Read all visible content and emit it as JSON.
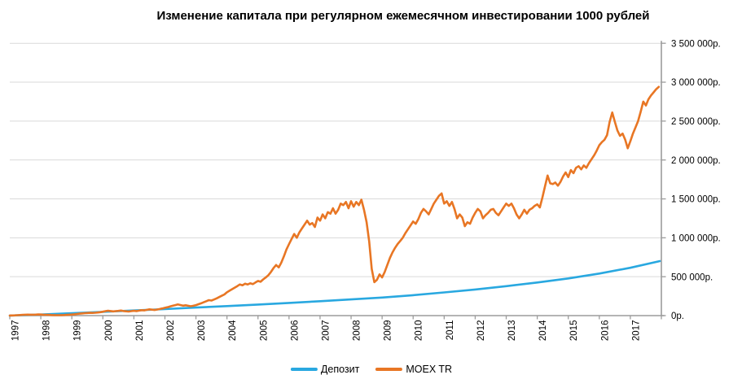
{
  "chart_data": {
    "type": "line",
    "title": "Изменение капитала при регулярном ежемесячном инвестировании 1000 рублей",
    "x_labels": [
      "1997",
      "1998",
      "1999",
      "2000",
      "2001",
      "2002",
      "2003",
      "2004",
      "2005",
      "2006",
      "2007",
      "2008",
      "2009",
      "2010",
      "2011",
      "2012",
      "2013",
      "2014",
      "2015",
      "2016",
      "2017"
    ],
    "y_tick_labels": [
      "0р.",
      "500 000р.",
      "1 000 000р.",
      "1 500 000р.",
      "2 000 000р.",
      "2 500 000р.",
      "3 000 000р.",
      "3 500 000р."
    ],
    "ylim": [
      0,
      3500000
    ],
    "y_step": 500000,
    "x_range_years": [
      1997,
      2018
    ],
    "grid": "horizontal-only",
    "legend_position": "bottom-center",
    "grid_color": "#D9D9D9",
    "axis_color": "#9B9B9B",
    "text_color": "#000000",
    "series": [
      {
        "name": "Депозит",
        "color": "#29A8E0",
        "kind": "anchors",
        "points": [
          [
            1997.0,
            1000
          ],
          [
            1998.0,
            14000
          ],
          [
            1999.0,
            30000
          ],
          [
            2000.0,
            48000
          ],
          [
            2001.0,
            66000
          ],
          [
            2002.0,
            84000
          ],
          [
            2003.0,
            103000
          ],
          [
            2004.0,
            122000
          ],
          [
            2005.0,
            142000
          ],
          [
            2006.0,
            163000
          ],
          [
            2007.0,
            185000
          ],
          [
            2008.0,
            208000
          ],
          [
            2009.0,
            232000
          ],
          [
            2010.0,
            262000
          ],
          [
            2011.0,
            298000
          ],
          [
            2012.0,
            336000
          ],
          [
            2013.0,
            378000
          ],
          [
            2014.0,
            425000
          ],
          [
            2015.0,
            478000
          ],
          [
            2016.0,
            540000
          ],
          [
            2017.0,
            615000
          ],
          [
            2017.95,
            700000
          ]
        ]
      },
      {
        "name": "MOEX TR",
        "color": "#E87624",
        "kind": "monthly",
        "start_year": 1997,
        "values": [
          1000,
          2000,
          3000,
          5000,
          7000,
          9000,
          11000,
          13000,
          12000,
          11000,
          13000,
          15000,
          14000,
          12000,
          10000,
          9000,
          7000,
          6000,
          5000,
          5000,
          6000,
          7000,
          9000,
          11000,
          14000,
          17000,
          21000,
          25000,
          28000,
          31000,
          33000,
          36000,
          34000,
          37000,
          40000,
          44000,
          50000,
          57000,
          63000,
          59000,
          54000,
          57000,
          61000,
          65000,
          59000,
          55000,
          52000,
          58000,
          62000,
          58000,
          64000,
          70000,
          67000,
          74000,
          80000,
          76000,
          72000,
          78000,
          85000,
          92000,
          100000,
          108000,
          117000,
          126000,
          135000,
          144000,
          136000,
          128000,
          133000,
          126000,
          120000,
          127000,
          135000,
          146000,
          158000,
          171000,
          185000,
          199000,
          193000,
          207000,
          222000,
          238000,
          255000,
          272000,
          300000,
          320000,
          340000,
          360000,
          380000,
          400000,
          390000,
          410000,
          400000,
          415000,
          405000,
          425000,
          445000,
          435000,
          465000,
          490000,
          520000,
          560000,
          610000,
          650000,
          620000,
          680000,
          760000,
          850000,
          920000,
          985000,
          1050000,
          1000000,
          1070000,
          1120000,
          1170000,
          1220000,
          1170000,
          1190000,
          1140000,
          1260000,
          1220000,
          1300000,
          1250000,
          1330000,
          1310000,
          1380000,
          1310000,
          1360000,
          1440000,
          1420000,
          1460000,
          1380000,
          1470000,
          1400000,
          1460000,
          1420000,
          1490000,
          1360000,
          1200000,
          950000,
          600000,
          430000,
          460000,
          530000,
          490000,
          560000,
          650000,
          740000,
          810000,
          870000,
          920000,
          960000,
          1000000,
          1060000,
          1110000,
          1160000,
          1210000,
          1180000,
          1240000,
          1320000,
          1370000,
          1340000,
          1300000,
          1370000,
          1440000,
          1490000,
          1540000,
          1570000,
          1440000,
          1470000,
          1410000,
          1460000,
          1370000,
          1250000,
          1300000,
          1260000,
          1150000,
          1200000,
          1180000,
          1260000,
          1320000,
          1370000,
          1340000,
          1250000,
          1290000,
          1320000,
          1360000,
          1370000,
          1320000,
          1290000,
          1340000,
          1390000,
          1440000,
          1410000,
          1440000,
          1380000,
          1300000,
          1250000,
          1300000,
          1360000,
          1310000,
          1360000,
          1380000,
          1410000,
          1430000,
          1390000,
          1520000,
          1660000,
          1800000,
          1700000,
          1690000,
          1710000,
          1670000,
          1720000,
          1790000,
          1840000,
          1780000,
          1870000,
          1830000,
          1900000,
          1920000,
          1880000,
          1930000,
          1900000,
          1960000,
          2010000,
          2060000,
          2120000,
          2190000,
          2230000,
          2260000,
          2320000,
          2490000,
          2610000,
          2490000,
          2380000,
          2310000,
          2340000,
          2260000,
          2150000,
          2240000,
          2340000,
          2420000,
          2500000,
          2620000,
          2750000,
          2700000,
          2780000,
          2830000,
          2870000,
          2910000,
          2940000
        ]
      }
    ]
  }
}
